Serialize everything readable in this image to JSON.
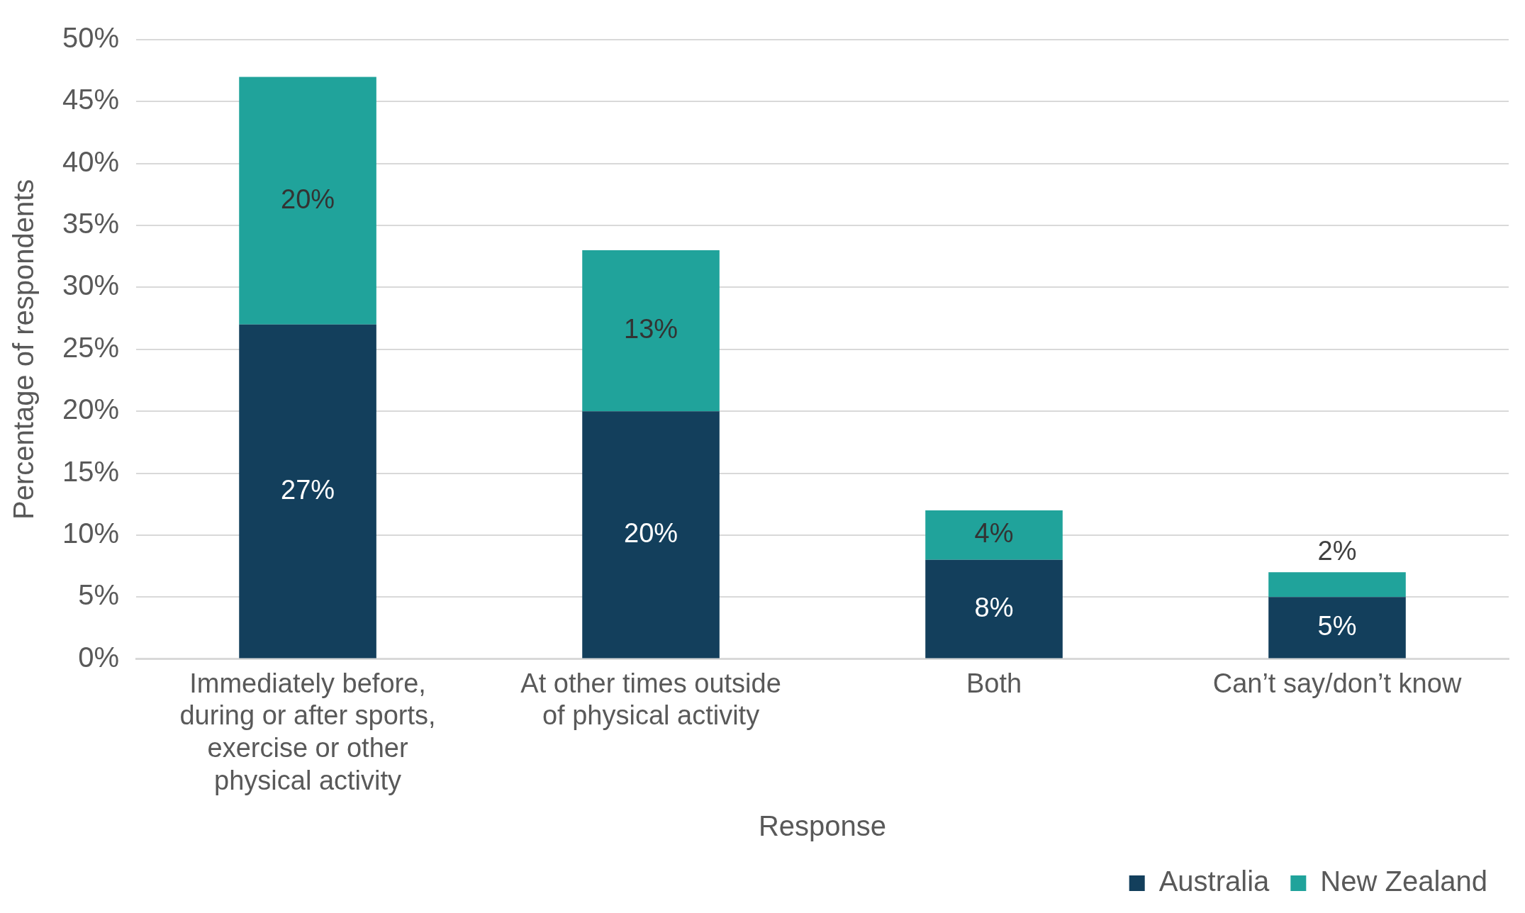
{
  "chart_data": {
    "type": "bar",
    "stacked": true,
    "categories": [
      "Immediately before, during or after sports, exercise or other physical activity",
      "At other times outside of physical activity",
      "Both",
      "Can’t say/don’t know"
    ],
    "series": [
      {
        "name": "Australia",
        "color": "#133f5c",
        "values": [
          27,
          20,
          8,
          5
        ],
        "value_labels": [
          "27%",
          "20%",
          "8%",
          "5%"
        ]
      },
      {
        "name": "New Zealand",
        "color": "#20a39b",
        "values": [
          20,
          13,
          4,
          2
        ],
        "value_labels": [
          "20%",
          "13%",
          "4%",
          "2%"
        ]
      }
    ],
    "ylabel": "Percentage of respondents",
    "xlabel": "Response",
    "ylim": [
      0,
      50
    ],
    "yticks": [
      {
        "value": 0,
        "label": "0%"
      },
      {
        "value": 5,
        "label": "5%"
      },
      {
        "value": 10,
        "label": "10%"
      },
      {
        "value": 15,
        "label": "15%"
      },
      {
        "value": 20,
        "label": "20%"
      },
      {
        "value": 25,
        "label": "25%"
      },
      {
        "value": 30,
        "label": "30%"
      },
      {
        "value": 35,
        "label": "35%"
      },
      {
        "value": 40,
        "label": "40%"
      },
      {
        "value": 45,
        "label": "45%"
      },
      {
        "value": 50,
        "label": "50%"
      }
    ],
    "grid": "y",
    "legend": "bottom right"
  }
}
